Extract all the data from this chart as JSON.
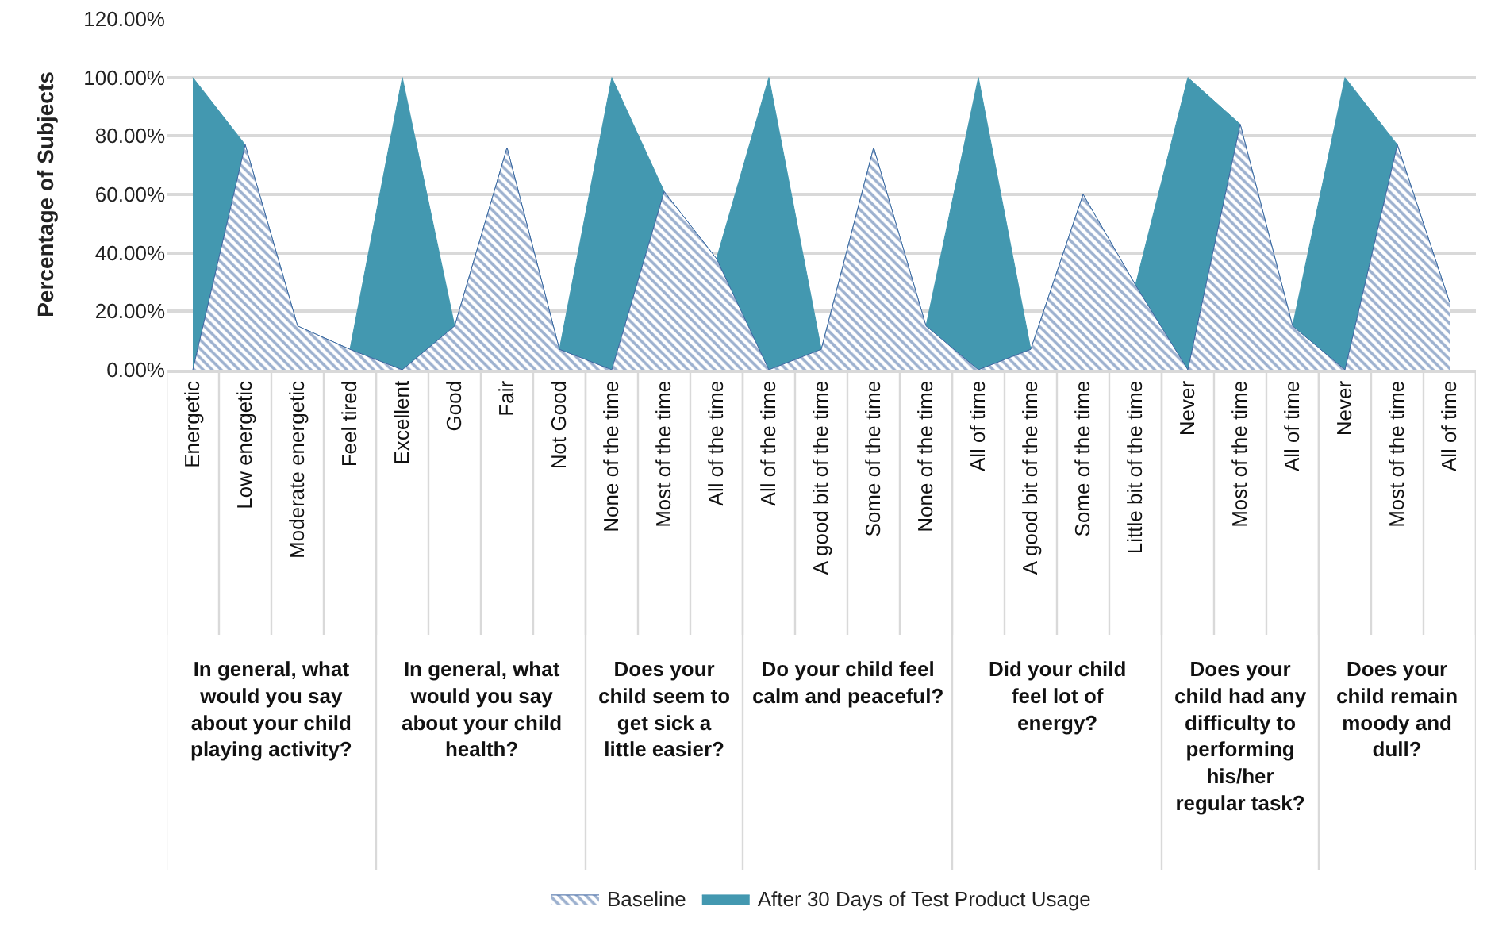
{
  "chart_data": {
    "type": "area",
    "ylabel": "Percentage of Subjects",
    "categories": [
      "Energetic",
      "Low energetic",
      "Moderate energetic",
      "Feel tired",
      "Excellent",
      "Good",
      "Fair",
      "Not Good",
      "None of the time",
      "Most of the time",
      "All of the time",
      "All of the time",
      "A good bit of the time",
      "Some of the time",
      "None of the time",
      "All of time",
      "A good bit of the time",
      "Some of the time",
      "Little bit of the time",
      "Never",
      "Most of the time",
      "All of time",
      "Never",
      "Most of the time",
      "All of time"
    ],
    "series": [
      {
        "name": "After 30 Days of Test Product Usage",
        "color": "#4398b0",
        "values": [
          100,
          77,
          15,
          7,
          100,
          15,
          76,
          7,
          100,
          61,
          38,
          100,
          7,
          76,
          15,
          100,
          7,
          60,
          29,
          100,
          84,
          15,
          100,
          77,
          23
        ]
      },
      {
        "name": "Baseline",
        "color": "#3c64a0",
        "values": [
          0,
          77,
          15,
          7,
          0,
          15,
          76,
          7,
          0,
          61,
          38,
          0,
          7,
          76,
          15,
          0,
          7,
          60,
          29,
          0,
          84,
          15,
          0,
          77,
          23
        ]
      }
    ],
    "annotations": [
      "In general, what would you say about your child playing activity?",
      "In general, what would you say about your child health?",
      "Does your child seem to get sick a little easier?",
      "Do your child feel calm and peaceful?",
      "Did your child feel lot of energy?",
      "Does your child had any difficulty to performing his/her regular task?",
      "Does your child remain moody and dull?"
    ],
    "ylim": [
      0,
      120
    ],
    "yticks": [
      {
        "value": 0,
        "label": "0.00%"
      },
      {
        "value": 20,
        "label": "20.00%"
      },
      {
        "value": 40,
        "label": "40.00%"
      },
      {
        "value": 60,
        "label": "60.00%"
      },
      {
        "value": 80,
        "label": "80.00%"
      },
      {
        "value": 100,
        "label": "100.00%"
      },
      {
        "value": 120,
        "label": "120.00%"
      }
    ],
    "grid": "y",
    "legend": "bottom"
  }
}
